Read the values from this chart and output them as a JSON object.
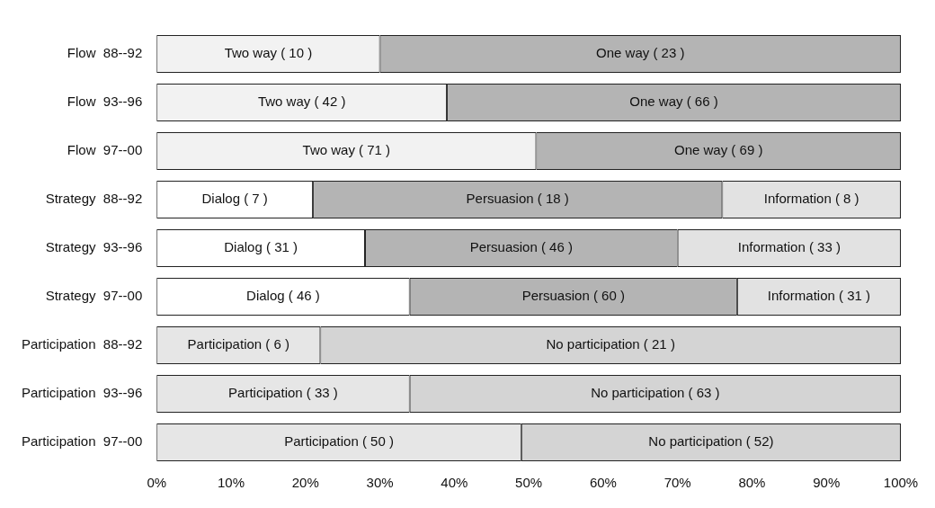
{
  "chart_data": {
    "type": "bar",
    "orientation": "horizontal",
    "stacked": true,
    "grid": false,
    "legend": false,
    "categories": [
      "Flow  88--92",
      "Flow  93--96",
      "Flow  97--00",
      "Strategy  88--92",
      "Strategy  93--96",
      "Strategy  97--00",
      "Participation  88--92",
      "Participation  93--96",
      "Participation  97--00"
    ],
    "xlim": [
      0,
      100
    ],
    "xticks": [
      {
        "value": 0,
        "label": "0%"
      },
      {
        "value": 10,
        "label": "10%"
      },
      {
        "value": 20,
        "label": "20%"
      },
      {
        "value": 30,
        "label": "30%"
      },
      {
        "value": 40,
        "label": "40%"
      },
      {
        "value": 50,
        "label": "50%"
      },
      {
        "value": 60,
        "label": "60%"
      },
      {
        "value": 70,
        "label": "70%"
      },
      {
        "value": 80,
        "label": "80%"
      },
      {
        "value": 90,
        "label": "90%"
      },
      {
        "value": 100,
        "label": "100%"
      }
    ],
    "series": [
      {
        "color": "#f2f2f2",
        "values": [
          30,
          39,
          51,
          null,
          null,
          null,
          null,
          null,
          null
        ]
      },
      {
        "color": "#b4b4b4",
        "values": [
          70,
          61,
          49,
          null,
          null,
          null,
          null,
          null,
          null
        ]
      },
      {
        "color": "#ffffff",
        "values": [
          null,
          null,
          null,
          21,
          28,
          34,
          null,
          null,
          null
        ]
      },
      {
        "color": "#b4b4b4",
        "values": [
          null,
          null,
          null,
          55,
          42,
          44,
          null,
          null,
          null
        ]
      },
      {
        "color": "#e2e2e2",
        "values": [
          null,
          null,
          null,
          24,
          30,
          22,
          null,
          null,
          null
        ]
      },
      {
        "color": "#e6e6e6",
        "values": [
          null,
          null,
          null,
          null,
          null,
          null,
          22,
          34,
          49
        ]
      },
      {
        "color": "#d4d4d4",
        "values": [
          null,
          null,
          null,
          null,
          null,
          null,
          78,
          66,
          51
        ]
      }
    ],
    "annotations": [
      {
        "text": "Two way ( 10 )",
        "x": 15,
        "y": "Flow  88--92"
      },
      {
        "text": "One way ( 23 )",
        "x": 65,
        "y": "Flow  88--92"
      },
      {
        "text": "Two way ( 42 )",
        "x": 19.5,
        "y": "Flow  93--96"
      },
      {
        "text": "One way ( 66 )",
        "x": 69.5,
        "y": "Flow  93--96"
      },
      {
        "text": "Two way ( 71 )",
        "x": 25.5,
        "y": "Flow  97--00"
      },
      {
        "text": "One way ( 69 )",
        "x": 75.5,
        "y": "Flow  97--00"
      },
      {
        "text": "Dialog ( 7 )",
        "x": 10.5,
        "y": "Strategy  88--92"
      },
      {
        "text": "Persuasion ( 18 )",
        "x": 48.5,
        "y": "Strategy  88--92"
      },
      {
        "text": "Information ( 8 )",
        "x": 88,
        "y": "Strategy  88--92"
      },
      {
        "text": "Dialog ( 31 )",
        "x": 14,
        "y": "Strategy  93--96"
      },
      {
        "text": "Persuasion ( 46 )",
        "x": 49,
        "y": "Strategy  93--96"
      },
      {
        "text": "Information ( 33 )",
        "x": 85,
        "y": "Strategy  93--96"
      },
      {
        "text": "Dialog ( 46 )",
        "x": 17,
        "y": "Strategy  97--00"
      },
      {
        "text": "Persuasion ( 60 )",
        "x": 56,
        "y": "Strategy  97--00"
      },
      {
        "text": "Information ( 31 )",
        "x": 89,
        "y": "Strategy  97--00"
      },
      {
        "text": "Participation ( 6 )",
        "x": 11,
        "y": "Participation  88--92"
      },
      {
        "text": "No participation ( 21 )",
        "x": 61,
        "y": "Participation  88--92"
      },
      {
        "text": "Participation ( 33 )",
        "x": 17,
        "y": "Participation  93--96"
      },
      {
        "text": "No participation ( 63 )",
        "x": 67,
        "y": "Participation  93--96"
      },
      {
        "text": "Participation ( 50 )",
        "x": 24.5,
        "y": "Participation  97--00"
      },
      {
        "text": "No participation ( 52)",
        "x": 74.5,
        "y": "Participation  97--00"
      }
    ]
  }
}
